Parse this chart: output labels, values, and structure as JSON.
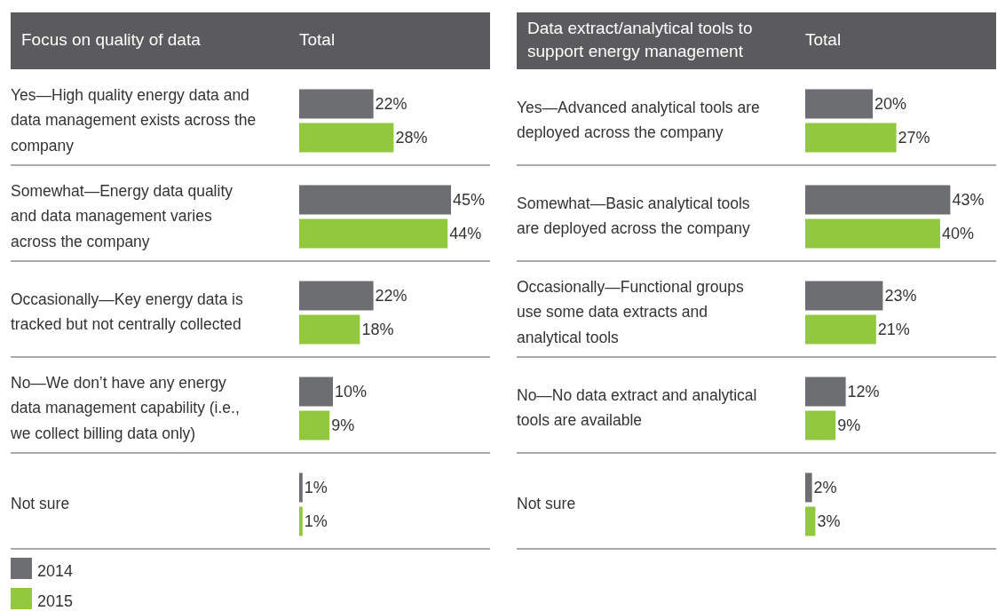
{
  "chart_data": [
    {
      "type": "bar",
      "orientation": "horizontal",
      "title": "Focus on quality of data",
      "xlabel": "Total",
      "categories": [
        "Yes—High quality energy data and data management exists across the company",
        "Somewhat—Energy data quality and data management varies across the company",
        "Occasionally—Key energy data is tracked but not centrally collected",
        "No—We don’t have any energy data management capability (i.e., we collect billing data only)",
        "Not sure"
      ],
      "series": [
        {
          "name": "2014",
          "color": "#6d6e71",
          "values": [
            22,
            45,
            22,
            10,
            1
          ],
          "value_labels": [
            "22%",
            "45%",
            "22%",
            "10%",
            "1%"
          ]
        },
        {
          "name": "2015",
          "color": "#92c83e",
          "values": [
            28,
            44,
            18,
            9,
            1
          ],
          "value_labels": [
            "28%",
            "44%",
            "18%",
            "9%",
            "1%"
          ]
        }
      ],
      "legend": "bottom left"
    },
    {
      "type": "bar",
      "orientation": "horizontal",
      "title": "Data extract/analytical tools to support energy management",
      "xlabel": "Total",
      "categories": [
        "Yes—Advanced analytical tools are deployed across the company",
        "Somewhat—Basic analytical tools are deployed across the company",
        "Occasionally—Functional groups use some data extracts and analytical tools",
        "No—No data extract and analytical tools are available",
        "Not sure"
      ],
      "series": [
        {
          "color": "#6d6e71",
          "values": [
            20,
            43,
            23,
            12,
            2
          ],
          "value_labels": [
            "20%",
            "43%",
            "23%",
            "12%",
            "2%"
          ]
        },
        {
          "color": "#92c83e",
          "values": [
            27,
            40,
            21,
            9,
            3
          ],
          "value_labels": [
            "27%",
            "40%",
            "21%",
            "9%",
            "3%"
          ]
        }
      ]
    }
  ]
}
